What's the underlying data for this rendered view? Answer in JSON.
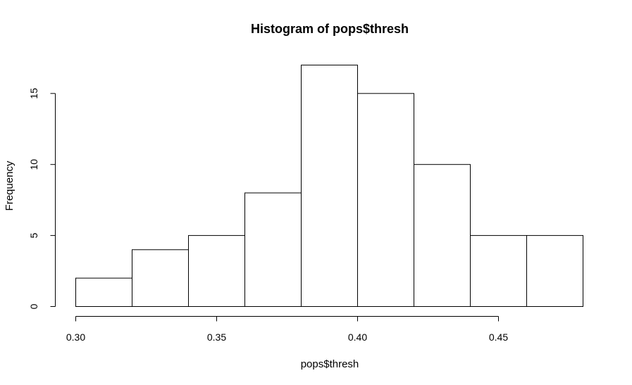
{
  "chart_data": {
    "type": "bar",
    "title": "Histogram of pops$thresh",
    "xlabel": "pops$thresh",
    "ylabel": "Frequency",
    "bins": [
      {
        "x0": 0.3,
        "x1": 0.32,
        "count": 2
      },
      {
        "x0": 0.32,
        "x1": 0.34,
        "count": 4
      },
      {
        "x0": 0.34,
        "x1": 0.36,
        "count": 5
      },
      {
        "x0": 0.36,
        "x1": 0.38,
        "count": 8
      },
      {
        "x0": 0.38,
        "x1": 0.4,
        "count": 17
      },
      {
        "x0": 0.4,
        "x1": 0.42,
        "count": 15
      },
      {
        "x0": 0.42,
        "x1": 0.44,
        "count": 10
      },
      {
        "x0": 0.44,
        "x1": 0.46,
        "count": 5
      },
      {
        "x0": 0.46,
        "x1": 0.48,
        "count": 5
      }
    ],
    "x_ticks": [
      0.3,
      0.35,
      0.4,
      0.45
    ],
    "x_tick_labels": [
      "0.30",
      "0.35",
      "0.40",
      "0.45"
    ],
    "y_ticks": [
      0,
      5,
      10,
      15
    ],
    "y_tick_labels": [
      "0",
      "5",
      "10",
      "15"
    ],
    "xlim": [
      0.3,
      0.48
    ],
    "ylim": [
      0,
      17
    ],
    "grid": false,
    "colors": {
      "bar_fill": "#ffffff",
      "bar_stroke": "#000000"
    }
  }
}
